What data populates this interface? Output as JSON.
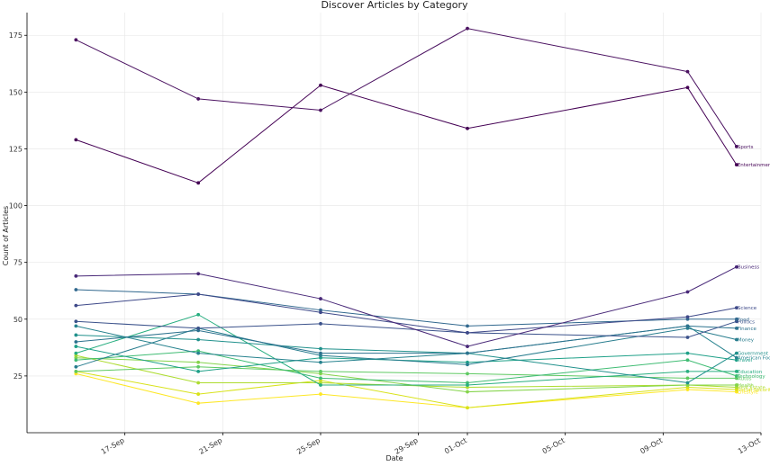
{
  "chart_data": {
    "type": "line",
    "title": "Discover Articles by Category",
    "xlabel": "Date",
    "ylabel": "Count of Articles",
    "x_dates": [
      "2023-09-15",
      "2023-09-20",
      "2023-09-25",
      "2023-10-01",
      "2023-10-10",
      "2023-10-12"
    ],
    "xlim": [
      "2023-09-13",
      "2023-10-13"
    ],
    "x_ticks": [
      {
        "date": "2023-09-17",
        "label": "17-Sep"
      },
      {
        "date": "2023-09-21",
        "label": "21-Sep"
      },
      {
        "date": "2023-09-25",
        "label": "25-Sep"
      },
      {
        "date": "2023-09-29",
        "label": "29-Sep"
      },
      {
        "date": "2023-10-01",
        "label": "01-Oct"
      },
      {
        "date": "2023-10-05",
        "label": "05-Oct"
      },
      {
        "date": "2023-10-09",
        "label": "09-Oct"
      },
      {
        "date": "2023-10-13",
        "label": "13-Oct"
      }
    ],
    "ylim": [
      0,
      185
    ],
    "y_ticks": [
      25,
      50,
      75,
      100,
      125,
      150,
      175
    ],
    "grid": true,
    "series": [
      {
        "name": "Sports",
        "color": "#4b1261",
        "values": [
          173,
          147,
          142,
          178,
          159,
          126
        ]
      },
      {
        "name": "Entertainment",
        "color": "#440154",
        "values": [
          129,
          110,
          153,
          134,
          152,
          118
        ]
      },
      {
        "name": "Business",
        "color": "#482878",
        "values": [
          69,
          70,
          59,
          38,
          62,
          73
        ]
      },
      {
        "name": "Science",
        "color": "#3e4989",
        "values": [
          56,
          61,
          53,
          44,
          51,
          55
        ]
      },
      {
        "name": "Food",
        "color": "#31688e",
        "values": [
          63,
          61,
          54,
          47,
          50,
          50
        ]
      },
      {
        "name": "Politics",
        "color": "#3b528b",
        "values": [
          49,
          46,
          48,
          44,
          42,
          49
        ]
      },
      {
        "name": "Finance",
        "color": "#2c728e",
        "values": [
          40,
          45,
          35,
          35,
          47,
          46
        ]
      },
      {
        "name": "Money",
        "color": "#287d8e",
        "values": [
          29,
          46,
          34,
          30,
          46,
          41
        ]
      },
      {
        "name": "Government",
        "color": "#21918c",
        "values": [
          43,
          41,
          37,
          35,
          22,
          35
        ]
      },
      {
        "name": "American Football",
        "color": "#26828e",
        "values": [
          47,
          35,
          31,
          35,
          47,
          33
        ]
      },
      {
        "name": "Travel",
        "color": "#1fa088",
        "values": [
          38,
          27,
          33,
          31,
          35,
          32
        ]
      },
      {
        "name": "Education",
        "color": "#28ae80",
        "values": [
          35,
          52,
          21,
          21,
          27,
          27
        ]
      },
      {
        "name": "Technology",
        "color": "#3fbc73",
        "values": [
          32,
          36,
          24,
          22,
          32,
          25
        ]
      },
      {
        "name": "Autos",
        "color": "#5ec962",
        "values": [
          27,
          29,
          27,
          26,
          24,
          24
        ]
      },
      {
        "name": "Health",
        "color": "#84d44b",
        "values": [
          33,
          31,
          26,
          18,
          21,
          21
        ]
      },
      {
        "name": "Real Estate",
        "color": "#addc30",
        "values": [
          34,
          22,
          22,
          20,
          21,
          20
        ]
      },
      {
        "name": "Social Security",
        "color": "#d8e219",
        "values": [
          27,
          17,
          23,
          11,
          20,
          19
        ]
      },
      {
        "name": "Lifestyle",
        "color": "#fde725",
        "values": [
          26,
          13,
          17,
          11,
          19,
          18
        ]
      }
    ],
    "end_labels": [
      {
        "text": "Sports",
        "series": 0
      },
      {
        "text": "Entertainment",
        "series": 1
      },
      {
        "text": "Business",
        "series": 2
      },
      {
        "text": "Science",
        "series": 3
      },
      {
        "text": "Food",
        "series": 4
      },
      {
        "text": "Politics",
        "series": 5
      },
      {
        "text": "Finance",
        "series": 6
      },
      {
        "text": "Money",
        "series": 7
      },
      {
        "text": "Government",
        "series": 8
      },
      {
        "text": "American Footba",
        "series": 9
      },
      {
        "text": "Travel",
        "series": 10
      },
      {
        "text": "Education",
        "series": 11
      },
      {
        "text": "Technology",
        "series": 12
      },
      {
        "text": "Autos",
        "series": 13
      },
      {
        "text": "Health",
        "series": 14
      },
      {
        "text": "Real Estate",
        "series": 15
      },
      {
        "text": "Social Security",
        "series": 16
      },
      {
        "text": "Lifestyle",
        "series": 17
      }
    ]
  }
}
